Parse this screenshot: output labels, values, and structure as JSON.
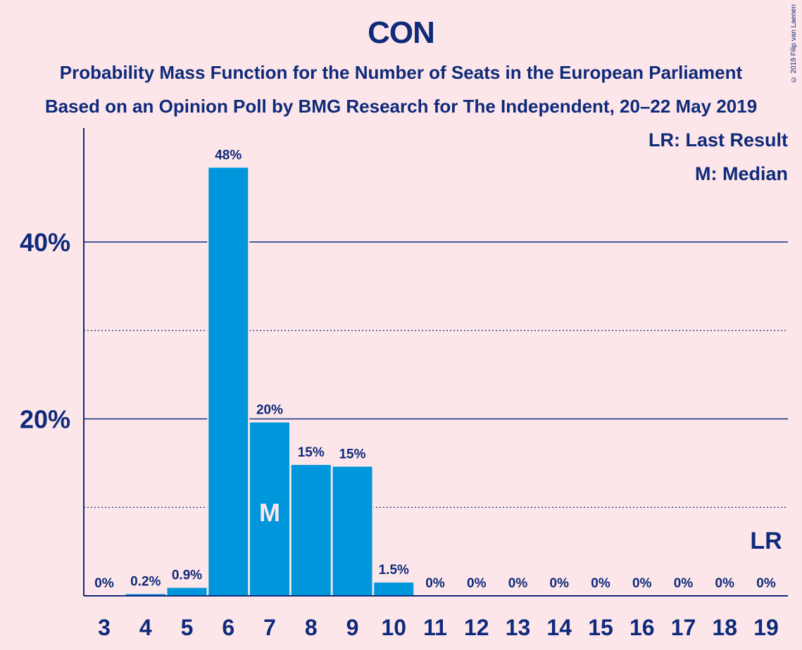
{
  "header": {
    "title": "CON",
    "subtitle_line1": "Probability Mass Function for the Number of Seats in the European Parliament",
    "subtitle_line2": "Based on an Opinion Poll by BMG Research for The Independent, 20–22 May 2019",
    "copyright": "© 2019 Filip van Laenen"
  },
  "legend": {
    "last_result": "LR: Last Result",
    "median": "M: Median"
  },
  "colors": {
    "background": "#fde6ea",
    "bar": "#0096db",
    "text": "#0e2a7a"
  },
  "chart_data": {
    "type": "bar",
    "title": "CON",
    "xlabel": "",
    "ylabel": "",
    "categories": [
      "3",
      "4",
      "5",
      "6",
      "7",
      "8",
      "9",
      "10",
      "11",
      "12",
      "13",
      "14",
      "15",
      "16",
      "17",
      "18",
      "19"
    ],
    "values": [
      0,
      0.2,
      0.9,
      48.4,
      19.6,
      14.8,
      14.6,
      1.5,
      0,
      0,
      0,
      0,
      0,
      0,
      0,
      0,
      0
    ],
    "data_labels": [
      "0%",
      "0.2%",
      "0.9%",
      "48%",
      "20%",
      "15%",
      "15%",
      "1.5%",
      "0%",
      "0%",
      "0%",
      "0%",
      "0%",
      "0%",
      "0%",
      "0%",
      "0%"
    ],
    "ylim": [
      0,
      52
    ],
    "yticks": [
      {
        "value": 20,
        "label": "20%"
      },
      {
        "value": 40,
        "label": "40%"
      }
    ],
    "minor_gridlines": [
      10,
      30
    ],
    "median_category": "7",
    "median_marker": "M",
    "last_result_category": "19",
    "last_result_marker": "LR"
  }
}
